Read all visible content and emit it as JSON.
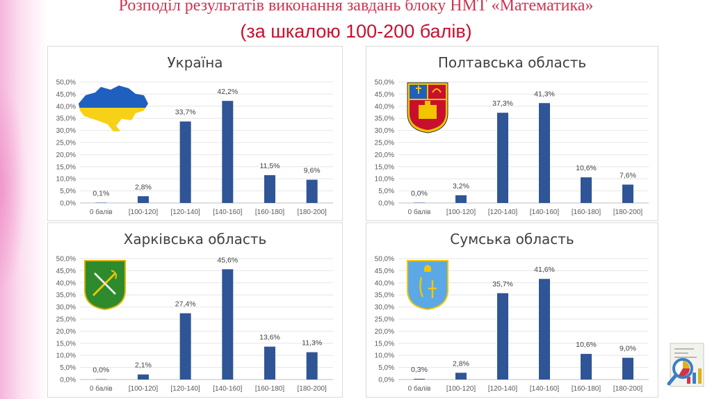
{
  "title_line1": "Розподіл результатів виконання завдань блоку НМТ «Математика»",
  "title_line2": "(за шкалою 100-200 балів)",
  "colors": {
    "bar": "#2f5597",
    "title": "#c8102e",
    "axis_text": "#595959"
  },
  "chart_data": [
    {
      "type": "bar",
      "title": "Україна",
      "categories": [
        "0 балів",
        "[100-120]",
        "[120-140]",
        "[140-160]",
        "[160-180]",
        "[180-200]"
      ],
      "values": [
        0.1,
        2.8,
        33.7,
        42.2,
        11.5,
        9.6
      ],
      "data_labels": [
        "0,1%",
        "2,8%",
        "33,7%",
        "42,2%",
        "11,5%",
        "9,6%"
      ],
      "yticks": [
        "0,0%",
        "5,0%",
        "10,0%",
        "15,0%",
        "20,0%",
        "25,0%",
        "30,0%",
        "35,0%",
        "40,0%",
        "45,0%",
        "50,0%"
      ],
      "ylim": [
        0,
        50
      ],
      "grid": true,
      "emblem": "ukraine-map-icon"
    },
    {
      "type": "bar",
      "title": "Полтавська область",
      "categories": [
        "0 балів",
        "[100-120]",
        "[120-140]",
        "[140-160]",
        "[160-180]",
        "[180-200]"
      ],
      "values": [
        0.0,
        3.2,
        37.3,
        41.3,
        10.6,
        7.6
      ],
      "data_labels": [
        "0,0%",
        "3,2%",
        "37,3%",
        "41,3%",
        "10,6%",
        "7,6%"
      ],
      "yticks": [
        "0,0%",
        "5,0%",
        "10,0%",
        "15,0%",
        "20,0%",
        "25,0%",
        "30,0%",
        "35,0%",
        "40,0%",
        "45,0%",
        "50,0%"
      ],
      "ylim": [
        0,
        50
      ],
      "grid": true,
      "emblem": "poltava-coat-of-arms-icon"
    },
    {
      "type": "bar",
      "title": "Харківська область",
      "categories": [
        "0 балів",
        "[100-120]",
        "[120-140]",
        "[140-160]",
        "[160-180]",
        "[180-200]"
      ],
      "values": [
        0.0,
        2.1,
        27.4,
        45.6,
        13.6,
        11.3
      ],
      "data_labels": [
        "0,0%",
        "2,1%",
        "27,4%",
        "45,6%",
        "13,6%",
        "11,3%"
      ],
      "yticks": [
        "0,0%",
        "5,0%",
        "10,0%",
        "15,0%",
        "20,0%",
        "25,0%",
        "30,0%",
        "35,0%",
        "40,0%",
        "45,0%",
        "50,0%"
      ],
      "ylim": [
        0,
        50
      ],
      "grid": true,
      "emblem": "kharkiv-coat-of-arms-icon"
    },
    {
      "type": "bar",
      "title": "Сумська область",
      "categories": [
        "0 балів",
        "[100-120]",
        "[120-140]",
        "[140-160]",
        "[160-180]",
        "[180-200]"
      ],
      "values": [
        0.3,
        2.8,
        35.7,
        41.6,
        10.6,
        9.0
      ],
      "data_labels": [
        "0,3%",
        "2,8%",
        "35,7%",
        "41,6%",
        "10,6%",
        "9,0%"
      ],
      "yticks": [
        "0,0%",
        "5,0%",
        "10,0%",
        "15,0%",
        "20,0%",
        "25,0%",
        "30,0%",
        "35,0%",
        "40,0%",
        "45,0%",
        "50,0%"
      ],
      "ylim": [
        0,
        50
      ],
      "grid": true,
      "emblem": "sumy-coat-of-arms-icon"
    }
  ]
}
